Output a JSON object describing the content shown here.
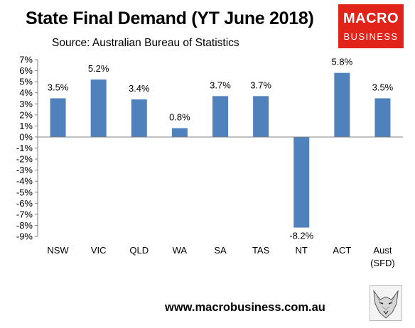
{
  "header": {
    "title": "State Final Demand (YT June 2018)",
    "subtitle": "Source: Australian Bureau of Statistics"
  },
  "logo": {
    "line1": "MACRO",
    "line2": "BUSINESS",
    "color": "#e2231a"
  },
  "footer": {
    "url": "www.macrobusiness.com.au"
  },
  "colors": {
    "bar": "#4f81bd",
    "grid": "#d9d9d9",
    "axis": "#808080"
  },
  "icons": {
    "corner": "wolf-logo-icon"
  },
  "chart_data": {
    "type": "bar",
    "title": "State Final Demand (YT June 2018)",
    "categories": [
      [
        "NSW"
      ],
      [
        "VIC"
      ],
      [
        "QLD"
      ],
      [
        "WA"
      ],
      [
        "SA"
      ],
      [
        "TAS"
      ],
      [
        "NT"
      ],
      [
        "ACT"
      ],
      [
        "Aust",
        "(SFD)"
      ]
    ],
    "values": [
      3.5,
      5.2,
      3.4,
      0.8,
      3.7,
      3.7,
      -8.2,
      5.8,
      3.5
    ],
    "data_labels": [
      "3.5%",
      "5.2%",
      "3.4%",
      "0.8%",
      "3.7%",
      "3.7%",
      "-8.2%",
      "5.8%",
      "3.5%"
    ],
    "ylim": [
      -9,
      7
    ],
    "yticks": [
      7,
      6,
      5,
      4,
      3,
      2,
      1,
      0,
      -1,
      -2,
      -3,
      -4,
      -5,
      -6,
      -7,
      -8,
      -9
    ],
    "ytick_labels": [
      "7%",
      "6%",
      "5%",
      "4%",
      "3%",
      "2%",
      "1%",
      "0%",
      "-1%",
      "-2%",
      "-3%",
      "-4%",
      "-5%",
      "-6%",
      "-7%",
      "-8%",
      "-9%"
    ],
    "grid": false,
    "legend": "none"
  }
}
